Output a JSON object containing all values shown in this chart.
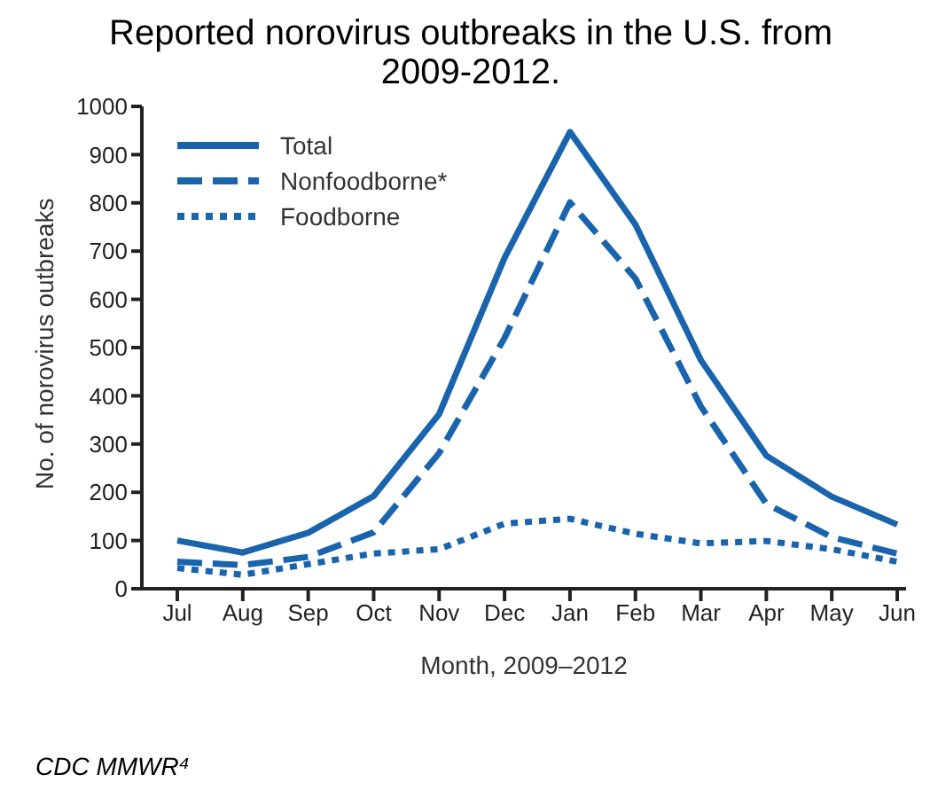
{
  "chart_data": {
    "type": "line",
    "title": "Reported norovirus outbreaks in the U.S. from 2009-2012.",
    "xlabel": "Month, 2009–2012",
    "ylabel": "No. of norovirus outbreaks",
    "annotations": [
      "CDC MMWR⁴"
    ],
    "categories": [
      "Jul",
      "Aug",
      "Sep",
      "Oct",
      "Nov",
      "Dec",
      "Jan",
      "Feb",
      "Mar",
      "Apr",
      "May",
      "Jun"
    ],
    "series": [
      {
        "name": "Total",
        "color": "#1a64ad",
        "line_style": "solid",
        "values": [
          100,
          75,
          116,
          192,
          362,
          686,
          947,
          755,
          474,
          276,
          191,
          133
        ]
      },
      {
        "name": "Nonfoodborne*",
        "color": "#1a64ad",
        "line_style": "dashed",
        "values": [
          56,
          49,
          66,
          117,
          281,
          520,
          801,
          643,
          378,
          176,
          107,
          73
        ]
      },
      {
        "name": "Foodborne",
        "color": "#1a64ad",
        "line_style": "dotted",
        "values": [
          43,
          29,
          51,
          73,
          82,
          135,
          145,
          114,
          94,
          99,
          82,
          56
        ]
      }
    ],
    "ylim": [
      0,
      1000
    ],
    "yticks": [
      0,
      100,
      200,
      300,
      400,
      500,
      600,
      700,
      800,
      900,
      1000
    ],
    "grid": false,
    "legend": "top left",
    "marker": "none"
  }
}
